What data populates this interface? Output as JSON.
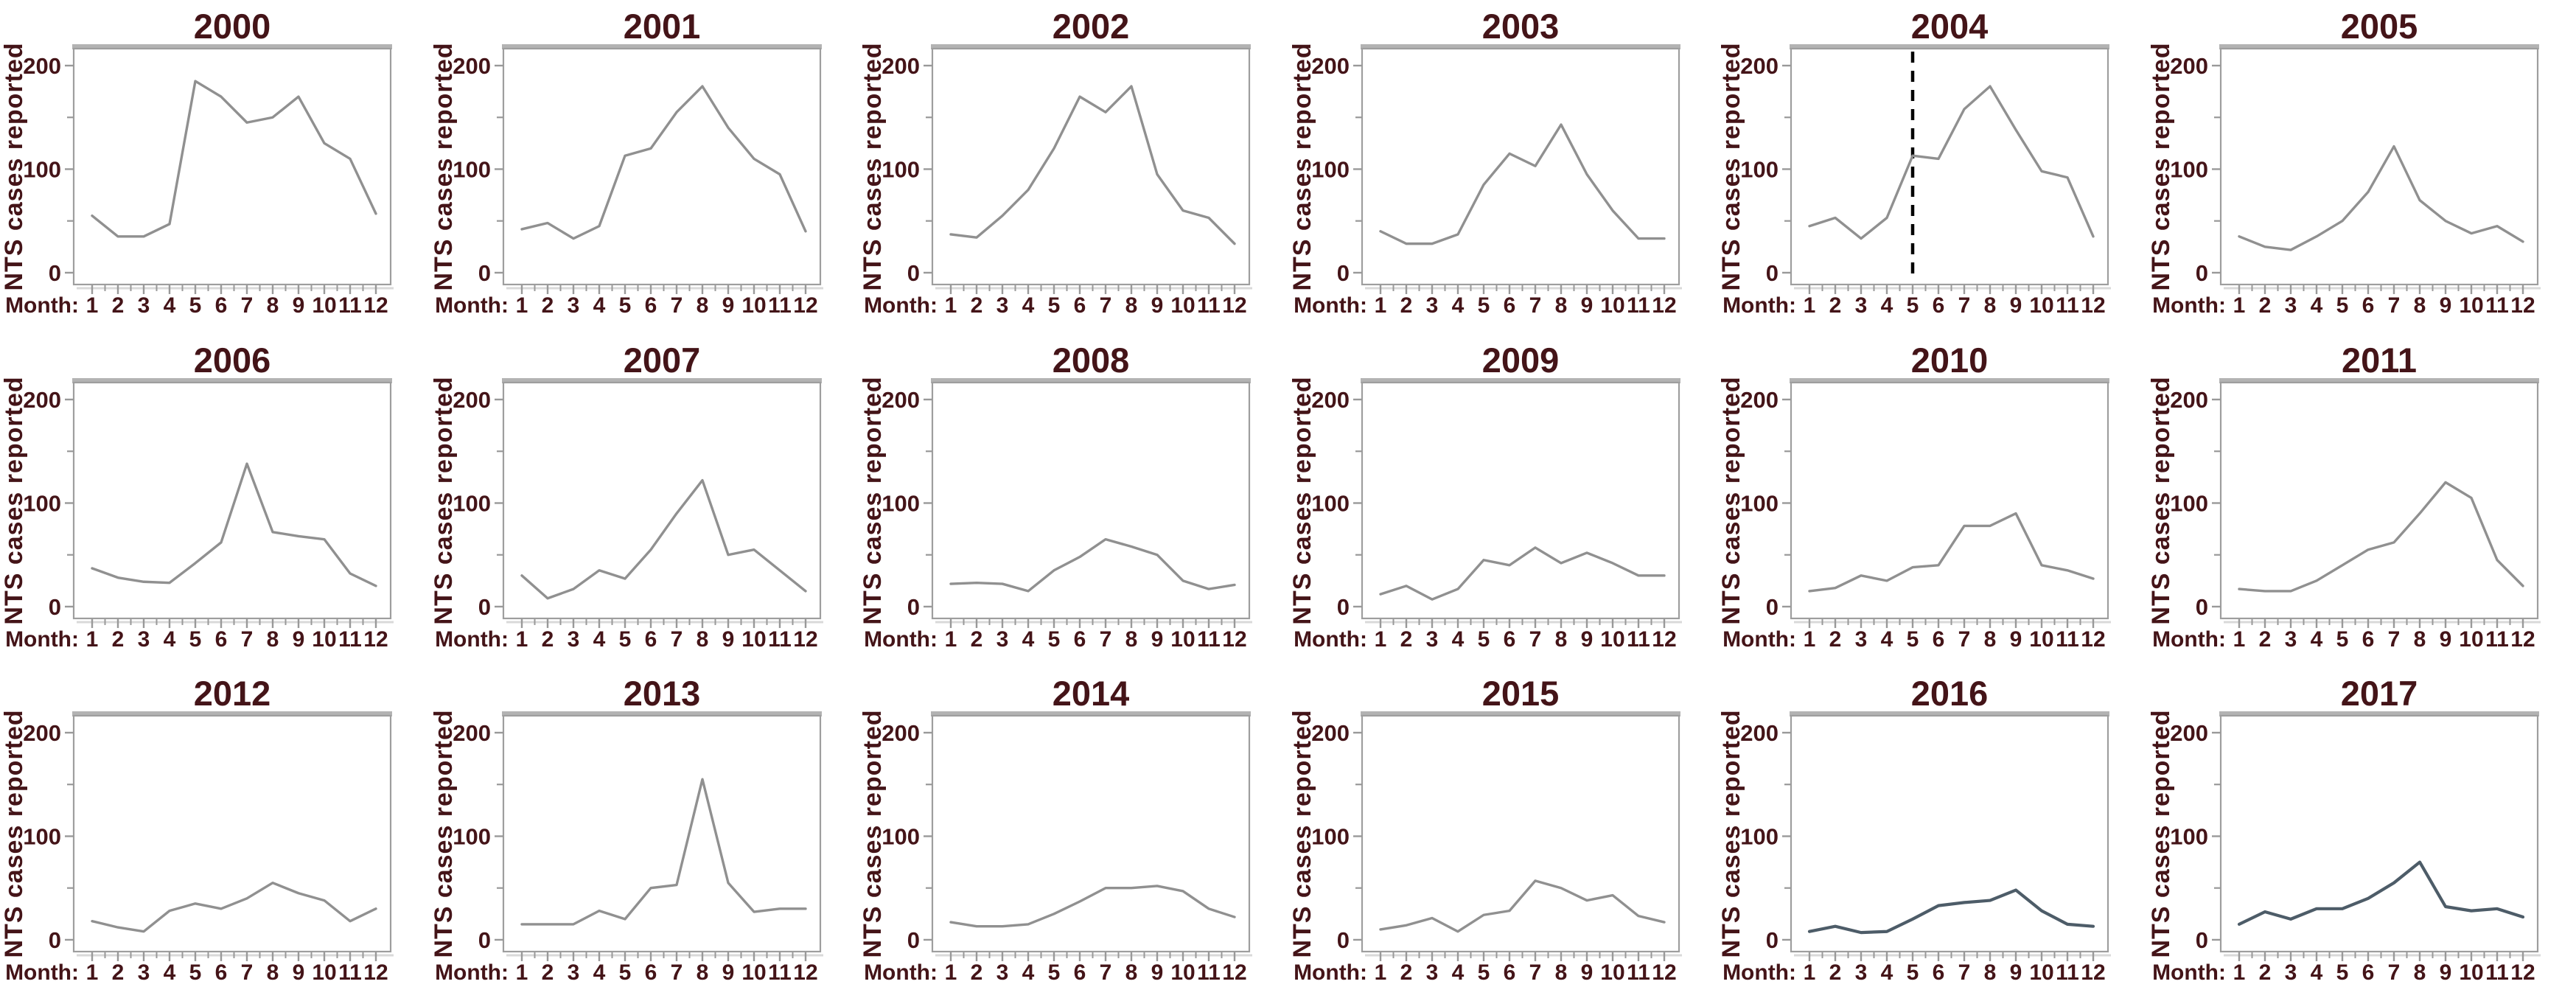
{
  "page": {
    "background": "#ffffff",
    "description": "Small-multiples panel of monthly NTS cases reported per year, 2000-2017"
  },
  "chart_data": {
    "type": "line",
    "grid": false,
    "legend": "none",
    "ylabel": "NTS cases reported",
    "xlabel_prefix": "Month:",
    "ylim": [
      0,
      200
    ],
    "ytick_labels": [
      "0",
      "100",
      "200"
    ],
    "yticks_labeled": [
      0,
      100,
      200
    ],
    "yticks_minor": [
      50,
      150
    ],
    "month_labels": [
      "1",
      "2",
      "3",
      "4",
      "5",
      "6",
      "7",
      "8",
      "9",
      "10",
      "11",
      "12"
    ],
    "x": [
      1,
      2,
      3,
      4,
      5,
      6,
      7,
      8,
      9,
      10,
      11,
      12
    ],
    "colors": {
      "text": "#441418",
      "line_default": "#909090",
      "line_dark": "#4d5c68",
      "plot_border": "#9e9e9e",
      "plot_top_band": "#b3b3b3",
      "tick": "#999999",
      "dashed_marker": "#000000"
    },
    "charts": [
      {
        "title": "2000",
        "values": [
          55,
          35,
          35,
          47,
          185,
          170,
          145,
          150,
          170,
          125,
          110,
          57
        ]
      },
      {
        "title": "2001",
        "values": [
          42,
          48,
          33,
          45,
          113,
          120,
          155,
          180,
          140,
          110,
          95,
          40
        ]
      },
      {
        "title": "2002",
        "values": [
          37,
          34,
          55,
          80,
          120,
          170,
          155,
          180,
          95,
          60,
          53,
          28
        ]
      },
      {
        "title": "2003",
        "values": [
          40,
          28,
          28,
          37,
          85,
          115,
          103,
          143,
          95,
          60,
          33,
          33
        ]
      },
      {
        "title": "2004",
        "values": [
          45,
          53,
          33,
          53,
          113,
          110,
          158,
          180,
          138,
          98,
          92,
          35
        ],
        "annotation": {
          "type": "dashed-vline",
          "x": 5,
          "color": "#000000"
        }
      },
      {
        "title": "2005",
        "values": [
          35,
          25,
          22,
          35,
          50,
          78,
          122,
          70,
          50,
          38,
          45,
          30
        ]
      },
      {
        "title": "2006",
        "values": [
          37,
          28,
          24,
          23,
          42,
          62,
          138,
          72,
          68,
          65,
          32,
          20
        ]
      },
      {
        "title": "2007",
        "values": [
          30,
          8,
          17,
          35,
          27,
          55,
          90,
          122,
          50,
          55,
          35,
          15
        ]
      },
      {
        "title": "2008",
        "values": [
          22,
          23,
          22,
          15,
          35,
          48,
          65,
          58,
          50,
          25,
          17,
          21
        ]
      },
      {
        "title": "2009",
        "values": [
          12,
          20,
          7,
          17,
          45,
          40,
          57,
          42,
          52,
          42,
          30,
          30
        ]
      },
      {
        "title": "2010",
        "values": [
          15,
          18,
          30,
          25,
          38,
          40,
          78,
          78,
          90,
          40,
          35,
          27
        ]
      },
      {
        "title": "2011",
        "values": [
          17,
          15,
          15,
          25,
          40,
          55,
          62,
          90,
          120,
          105,
          45,
          20
        ]
      },
      {
        "title": "2012",
        "values": [
          18,
          12,
          8,
          28,
          35,
          30,
          40,
          55,
          45,
          38,
          18,
          30
        ]
      },
      {
        "title": "2013",
        "values": [
          15,
          15,
          15,
          28,
          20,
          50,
          53,
          155,
          55,
          27,
          30,
          30
        ]
      },
      {
        "title": "2014",
        "values": [
          17,
          13,
          13,
          15,
          25,
          37,
          50,
          50,
          52,
          47,
          30,
          22
        ]
      },
      {
        "title": "2015",
        "values": [
          10,
          14,
          21,
          8,
          24,
          28,
          57,
          50,
          38,
          43,
          23,
          17
        ]
      },
      {
        "title": "2016",
        "values": [
          8,
          13,
          7,
          8,
          20,
          33,
          36,
          38,
          48,
          28,
          15,
          13
        ],
        "line_color": "#4d5c68"
      },
      {
        "title": "2017",
        "values": [
          15,
          27,
          20,
          30,
          30,
          40,
          55,
          75,
          32,
          28,
          30,
          22
        ],
        "line_color": "#4d5c68"
      }
    ]
  }
}
